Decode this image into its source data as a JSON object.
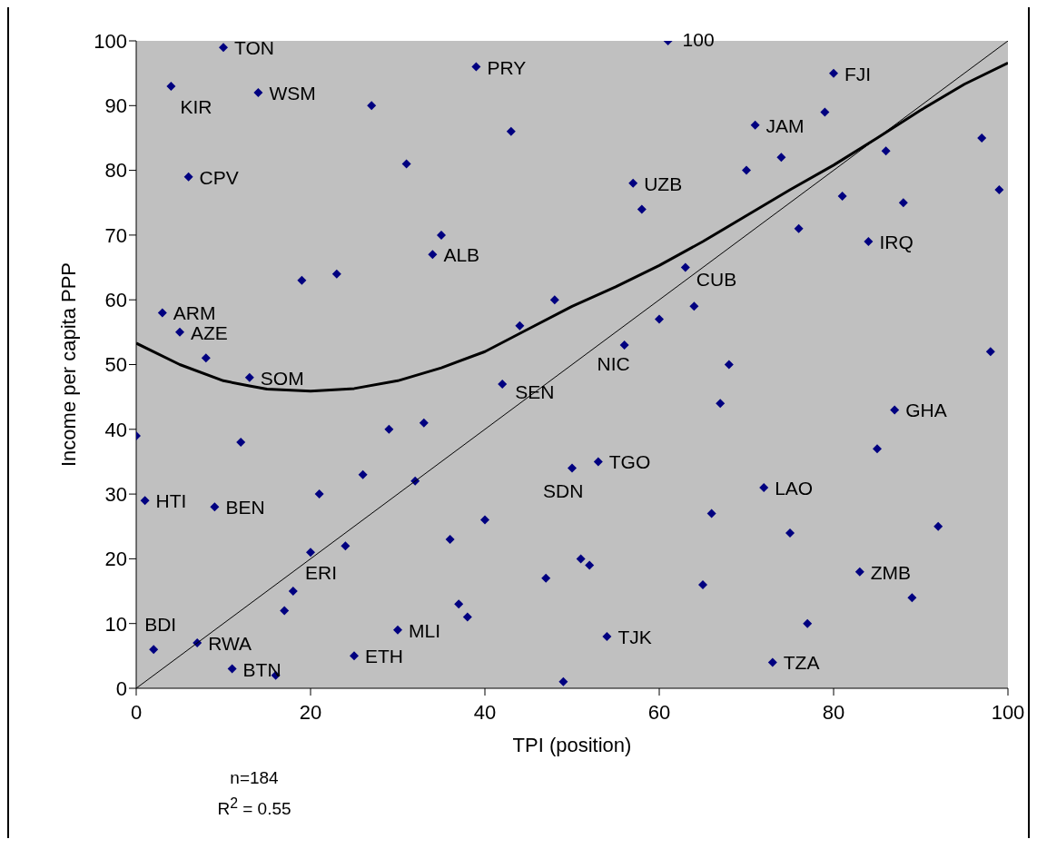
{
  "chart_data": {
    "type": "scatter",
    "xlabel": "TPI (position)",
    "ylabel": "Income per capita PPP",
    "xlim": [
      0,
      100
    ],
    "ylim": [
      0,
      100
    ],
    "xticks": [
      0,
      20,
      40,
      60,
      80,
      100
    ],
    "yticks": [
      0,
      10,
      20,
      30,
      40,
      50,
      60,
      70,
      80,
      90,
      100
    ],
    "grid": false,
    "legend": false,
    "series": [
      {
        "marker": "diamond",
        "color": "#000080",
        "x": [
          10,
          4,
          14,
          27,
          39,
          43,
          31,
          6,
          35,
          34,
          19,
          23,
          3,
          5,
          8,
          44,
          48,
          13,
          42,
          0,
          12,
          29,
          33,
          26,
          32,
          1,
          9,
          21,
          20,
          24,
          36,
          40,
          18,
          17,
          2,
          7,
          11,
          16,
          25,
          30,
          37,
          38,
          47,
          50,
          53,
          51,
          52,
          49,
          54,
          65,
          73,
          77,
          66,
          75,
          72,
          83,
          89,
          92,
          85,
          87,
          67,
          68,
          56,
          98,
          60,
          64,
          63,
          76,
          84,
          88,
          81,
          99,
          97,
          86,
          70,
          74,
          79,
          71,
          80,
          61,
          57,
          58
        ],
        "values": [
          99,
          93,
          92,
          90,
          96,
          86,
          81,
          79,
          70,
          67,
          63,
          64,
          58,
          55,
          51,
          56,
          60,
          48,
          47,
          39,
          38,
          40,
          41,
          33,
          32,
          29,
          28,
          30,
          21,
          22,
          23,
          26,
          15,
          12,
          6,
          7,
          3,
          2,
          5,
          9,
          13,
          11,
          17,
          34,
          35,
          20,
          19,
          1,
          8,
          16,
          4,
          10,
          27,
          24,
          31,
          18,
          14,
          25,
          37,
          43,
          44,
          50,
          53,
          52,
          57,
          59,
          65,
          71,
          69,
          75,
          76,
          77,
          85,
          83,
          80,
          82,
          89,
          87,
          95,
          100,
          78,
          74
        ]
      },
      {
        "type": "line",
        "marker": "none",
        "color": "#000000",
        "line_style": "solid",
        "x": [
          0,
          100
        ],
        "values": [
          0,
          100
        ]
      },
      {
        "type": "line",
        "marker": "none",
        "color": "#000000",
        "line_style": "solid",
        "x": [
          0,
          5,
          10,
          13,
          15,
          20,
          25,
          30,
          35,
          40,
          45,
          50,
          55,
          60,
          65,
          70,
          75,
          80,
          85,
          90,
          95,
          100
        ],
        "values": [
          53.3,
          50,
          47.5,
          46.7,
          46.2,
          45.9,
          46.3,
          47.5,
          49.5,
          52,
          55.5,
          59,
          62,
          65.3,
          69,
          73,
          77,
          80.8,
          85,
          89.3,
          93.3,
          96.6
        ]
      }
    ],
    "annotations": [
      {
        "text": "TON",
        "x": 10,
        "y": 99
      },
      {
        "text": "KIR",
        "x": 4,
        "y": 93
      },
      {
        "text": "WSM",
        "x": 14,
        "y": 92
      },
      {
        "text": "PRY",
        "x": 39,
        "y": 96
      },
      {
        "text": "CPV",
        "x": 6,
        "y": 79
      },
      {
        "text": "ALB",
        "x": 34,
        "y": 67
      },
      {
        "text": "ARM",
        "x": 3,
        "y": 58
      },
      {
        "text": "AZE",
        "x": 5,
        "y": 55
      },
      {
        "text": "SOM",
        "x": 13,
        "y": 48
      },
      {
        "text": "SEN",
        "x": 42,
        "y": 47
      },
      {
        "text": "HTI",
        "x": 1,
        "y": 29
      },
      {
        "text": "BEN",
        "x": 9,
        "y": 28
      },
      {
        "text": "ERI",
        "x": 20,
        "y": 21
      },
      {
        "text": "BDI",
        "x": 2,
        "y": 6
      },
      {
        "text": "RWA",
        "x": 7,
        "y": 7
      },
      {
        "text": "BTN",
        "x": 11,
        "y": 3
      },
      {
        "text": "ETH",
        "x": 25,
        "y": 5
      },
      {
        "text": "MLI",
        "x": 30,
        "y": 9
      },
      {
        "text": "SDN",
        "x": 50,
        "y": 34
      },
      {
        "text": "TGO",
        "x": 53,
        "y": 35
      },
      {
        "text": "TJK",
        "x": 54,
        "y": 8
      },
      {
        "text": "TZA",
        "x": 73,
        "y": 4
      },
      {
        "text": "LAO",
        "x": 72,
        "y": 31
      },
      {
        "text": "ZMB",
        "x": 83,
        "y": 18
      },
      {
        "text": "GHA",
        "x": 87,
        "y": 43
      },
      {
        "text": "NIC",
        "x": 56,
        "y": 53
      },
      {
        "text": "CUB",
        "x": 63,
        "y": 65
      },
      {
        "text": "IRQ",
        "x": 84,
        "y": 69
      },
      {
        "text": "JAM",
        "x": 71,
        "y": 87
      },
      {
        "text": "FJI",
        "x": 80,
        "y": 95
      },
      {
        "text": "UZB",
        "x": 57,
        "y": 78
      },
      {
        "text": "100",
        "x": 61,
        "y": 100
      },
      "n=184",
      "R$^{2}$ = 0.55"
    ]
  }
}
